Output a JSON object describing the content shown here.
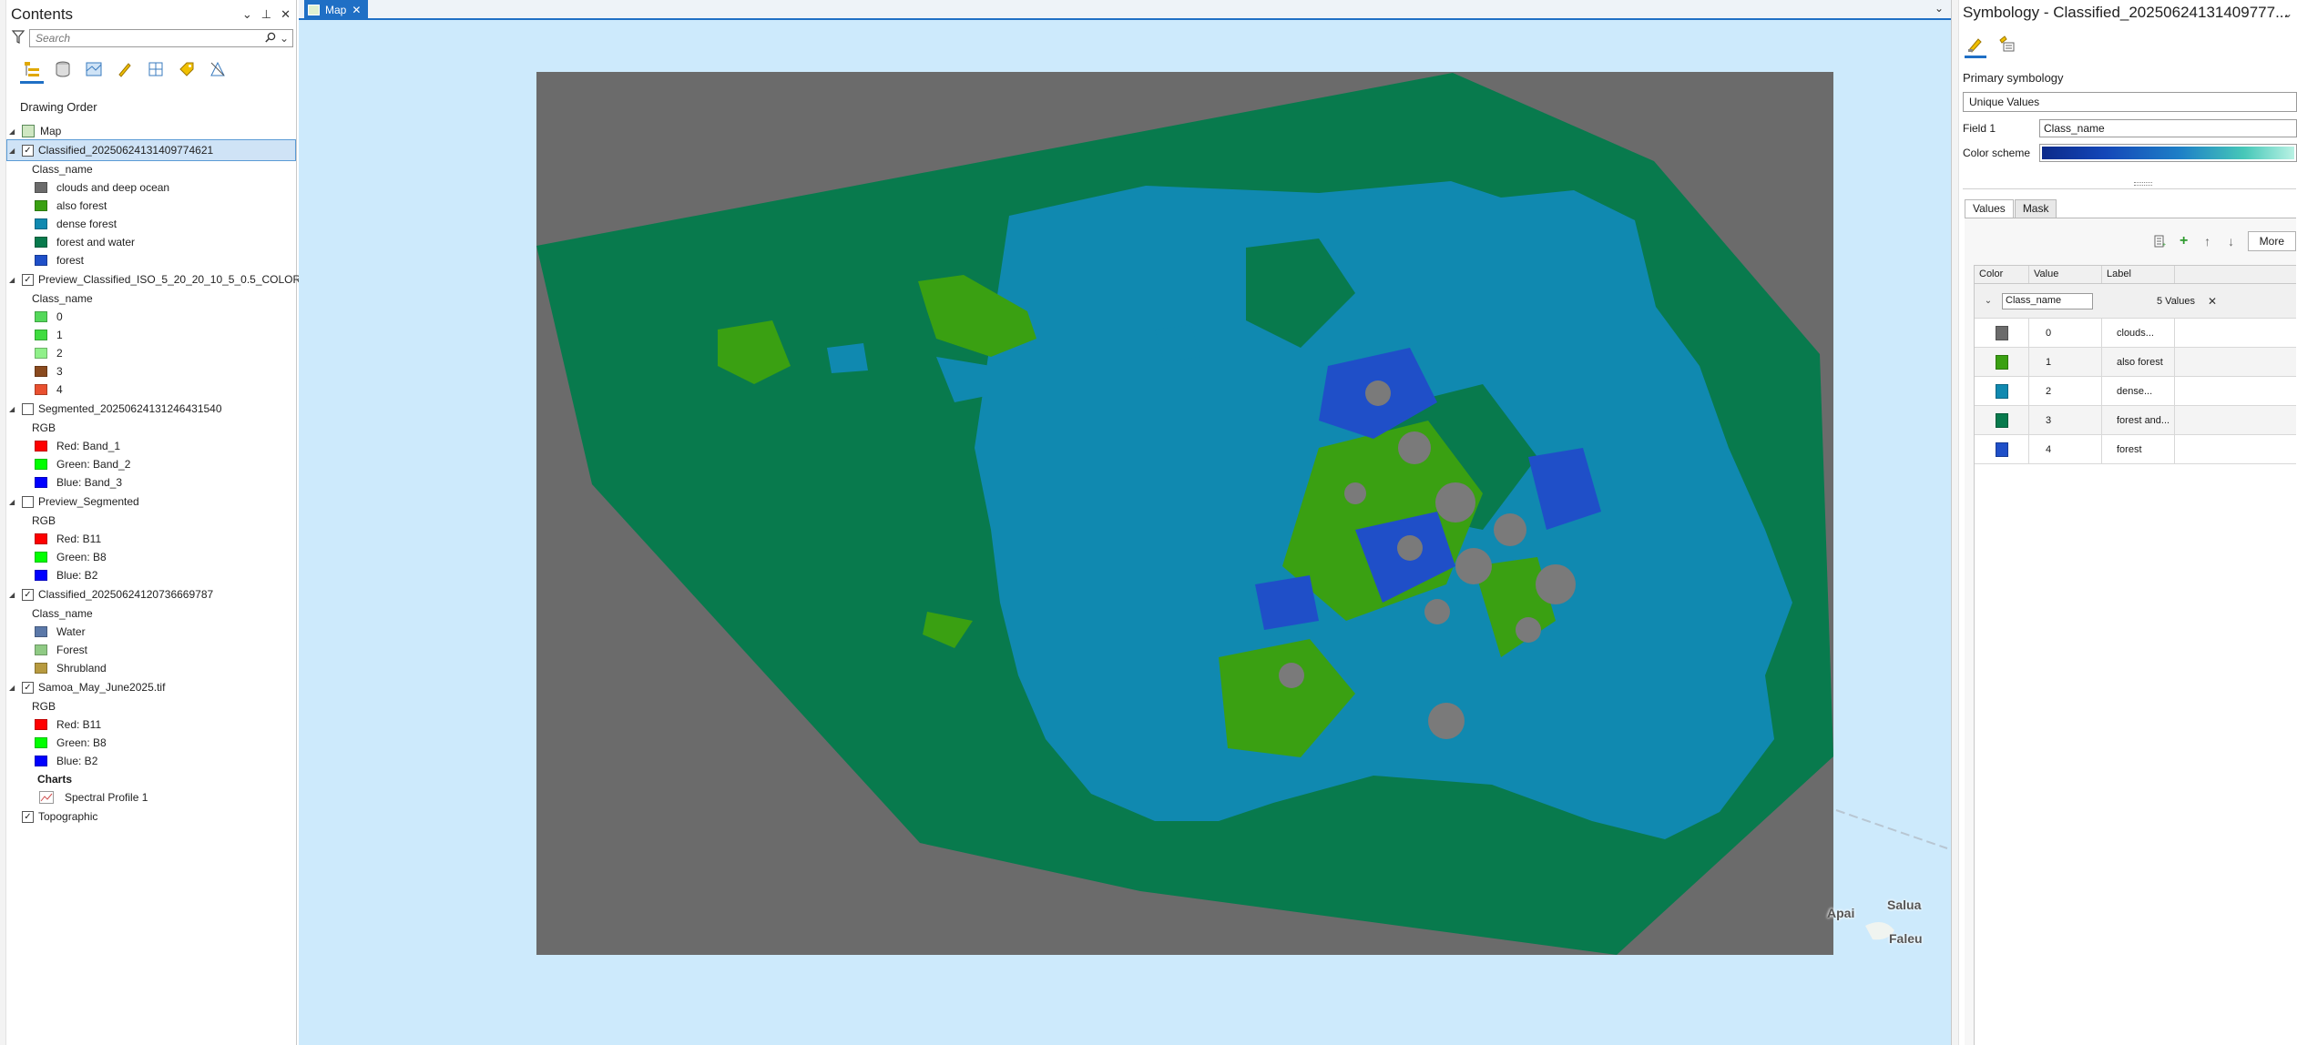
{
  "contents": {
    "title": "Contents",
    "search_placeholder": "Search",
    "drawing_order_label": "Drawing Order",
    "map_label": "Map",
    "layers": [
      {
        "name": "Classified_20250624131409774621",
        "checked": true,
        "selected": true,
        "field": "Class_name",
        "items": [
          {
            "label": "clouds and deep ocean",
            "color": "#6b6b6b"
          },
          {
            "label": "also forest",
            "color": "#3aa012"
          },
          {
            "label": "dense forest",
            "color": "#1089b0"
          },
          {
            "label": "forest and water",
            "color": "#087a4d"
          },
          {
            "label": "forest",
            "color": "#1f4fc8"
          }
        ]
      },
      {
        "name": "Preview_Classified_ISO_5_20_20_10_5_0.5_COLOR...",
        "checked": true,
        "field": "Class_name",
        "items": [
          {
            "label": "0",
            "color": "#54d85a"
          },
          {
            "label": "1",
            "color": "#3fdc3f"
          },
          {
            "label": "2",
            "color": "#90f08a"
          },
          {
            "label": "3",
            "color": "#8a4a1e"
          },
          {
            "label": "4",
            "color": "#e9502f"
          }
        ]
      },
      {
        "name": "Segmented_20250624131246431540",
        "checked": false,
        "field": "RGB",
        "items": [
          {
            "label": "Red:   Band_1",
            "color": "#ff0000"
          },
          {
            "label": "Green: Band_2",
            "color": "#00ff00"
          },
          {
            "label": "Blue:  Band_3",
            "color": "#0000ff"
          }
        ]
      },
      {
        "name": "Preview_Segmented",
        "checked": false,
        "field": "RGB",
        "items": [
          {
            "label": "Red:   B11",
            "color": "#ff0000"
          },
          {
            "label": "Green: B8",
            "color": "#00ff00"
          },
          {
            "label": "Blue:  B2",
            "color": "#0000ff"
          }
        ]
      },
      {
        "name": "Classified_20250624120736669787",
        "checked": true,
        "field": "Class_name",
        "items": [
          {
            "label": "Water",
            "color": "#5b78a8"
          },
          {
            "label": "Forest",
            "color": "#8fca84"
          },
          {
            "label": "Shrubland",
            "color": "#b79a3f"
          }
        ]
      },
      {
        "name": "Samoa_May_June2025.tif",
        "checked": true,
        "field": "RGB",
        "items": [
          {
            "label": "Red:   B11",
            "color": "#ff0000"
          },
          {
            "label": "Green: B8",
            "color": "#00ff00"
          },
          {
            "label": "Blue:  B2",
            "color": "#0000ff"
          }
        ]
      }
    ],
    "charts_label": "Charts",
    "chart_item": "Spectral Profile 1",
    "topographic": "Topographic"
  },
  "map_view": {
    "tab_label": "Map",
    "place_labels": [
      "Apai",
      "Salua",
      "Faleu"
    ]
  },
  "symbology": {
    "title": "Symbology - Classified_20250624131409777...",
    "primary_label": "Primary symbology",
    "primary_value": "Unique Values",
    "field1_label": "Field 1",
    "field1_value": "Class_name",
    "scheme_label": "Color scheme",
    "tabs": [
      "Values",
      "Mask"
    ],
    "more_label": "More",
    "columns": [
      "Color",
      "Value",
      "Label"
    ],
    "group_field": "Class_name",
    "group_count": "5 Values",
    "rows": [
      {
        "value": "0",
        "label": "clouds...",
        "color": "#6b6b6b"
      },
      {
        "value": "1",
        "label": "also forest",
        "color": "#3aa012"
      },
      {
        "value": "2",
        "label": "dense...",
        "color": "#1089b0"
      },
      {
        "value": "3",
        "label": "forest and...",
        "color": "#087a4d"
      },
      {
        "value": "4",
        "label": "forest",
        "color": "#1f4fc8"
      }
    ]
  }
}
